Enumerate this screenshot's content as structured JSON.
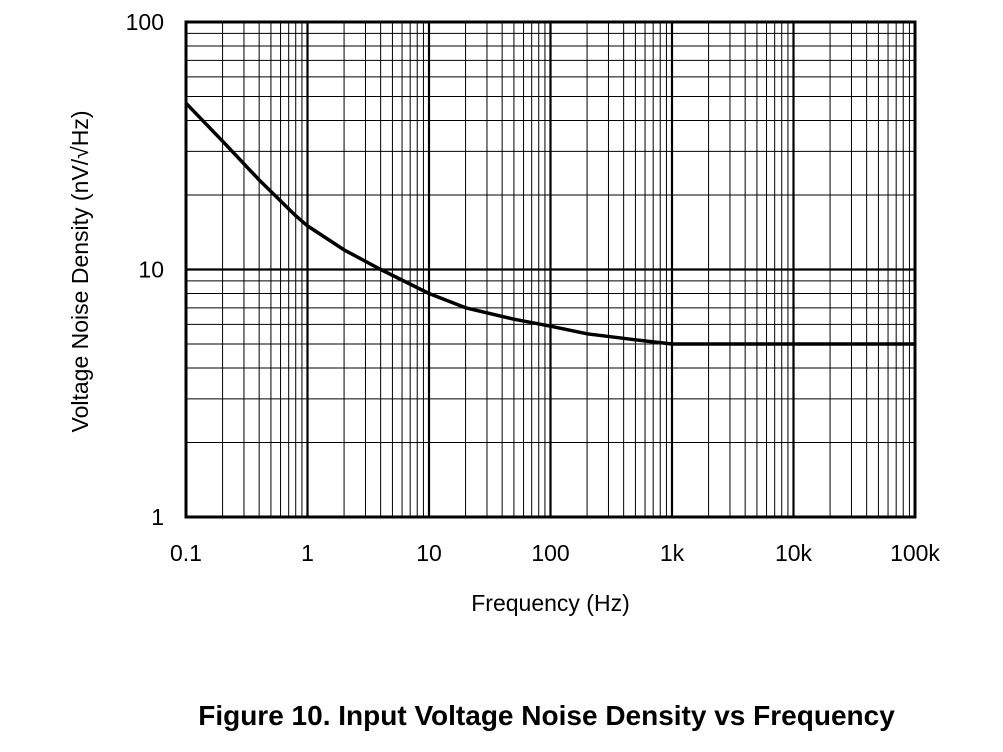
{
  "chart_data": {
    "type": "line",
    "title": "",
    "caption": "Figure 10. Input Voltage Noise Density vs Frequency",
    "xlabel": "Frequency (Hz)",
    "ylabel": "Voltage Noise Density (nV/√Hz)",
    "x_scale": "log",
    "y_scale": "log",
    "xlim": [
      0.1,
      100000
    ],
    "ylim": [
      1,
      100
    ],
    "x_ticks": [
      0.1,
      1,
      10,
      100,
      1000,
      10000,
      100000
    ],
    "x_tick_labels": [
      "0.1",
      "1",
      "10",
      "100",
      "1k",
      "10k",
      "100k"
    ],
    "y_ticks": [
      1,
      10,
      100
    ],
    "y_tick_labels": [
      "1",
      "10",
      "100"
    ],
    "grid": true,
    "series": [
      {
        "name": "",
        "color": "#000000",
        "x": [
          0.1,
          0.2,
          0.4,
          0.8,
          1,
          2,
          4,
          10,
          20,
          50,
          100,
          200,
          500,
          700,
          1000,
          10000,
          100000
        ],
        "y": [
          47,
          33,
          23,
          16.5,
          15,
          12,
          10,
          8,
          7,
          6.3,
          5.9,
          5.5,
          5.2,
          5.1,
          5.0,
          5.0,
          5.0
        ]
      }
    ]
  }
}
